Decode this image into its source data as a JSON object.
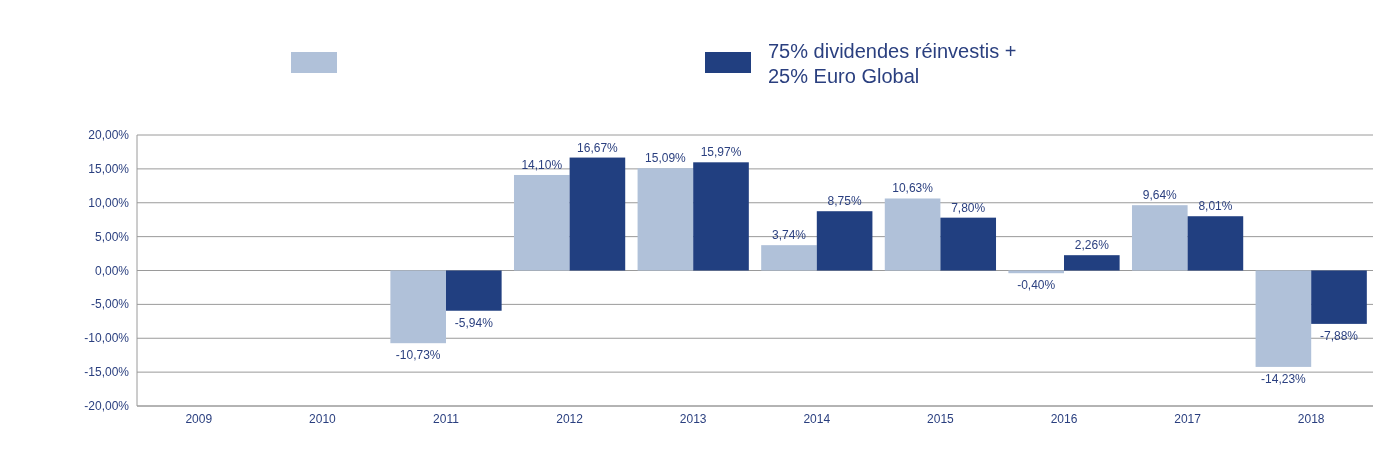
{
  "chart_data": {
    "type": "bar",
    "categories": [
      "2009",
      "2010",
      "2011",
      "2012",
      "2013",
      "2014",
      "2015",
      "2016",
      "2017",
      "2018"
    ],
    "series": [
      {
        "color": "#b0c1d9",
        "values": [
          null,
          null,
          -10.73,
          14.1,
          15.09,
          3.74,
          10.63,
          -0.4,
          9.64,
          -14.23
        ],
        "value_labels": [
          null,
          null,
          "-10,73%",
          "14,10%",
          "15,09%",
          "3,74%",
          "10,63%",
          "-0,40%",
          "9,64%",
          "-14,23%"
        ]
      },
      {
        "name": "75% dividendes réinvestis + 25% Euro Global",
        "color": "#213f80",
        "values": [
          null,
          null,
          -5.94,
          16.67,
          15.97,
          8.75,
          7.8,
          2.26,
          8.01,
          -7.88
        ],
        "value_labels": [
          null,
          null,
          "-5,94%",
          "16,67%",
          "15,97%",
          "8,75%",
          "7,80%",
          "2,26%",
          "8,01%",
          "-7,88%"
        ]
      }
    ],
    "ylim": [
      -20,
      20
    ],
    "yticks": [
      {
        "value": -20,
        "label": "-20,00%"
      },
      {
        "value": -15,
        "label": "-15,00%"
      },
      {
        "value": -10,
        "label": "-10,00%"
      },
      {
        "value": -5,
        "label": "-5,00%"
      },
      {
        "value": 0,
        "label": "0,00%"
      },
      {
        "value": 5,
        "label": "5,00%"
      },
      {
        "value": 10,
        "label": "10,00%"
      },
      {
        "value": 15,
        "label": "15,00%"
      },
      {
        "value": 20,
        "label": "20,00%"
      }
    ],
    "grid": "y",
    "legend": "top"
  }
}
